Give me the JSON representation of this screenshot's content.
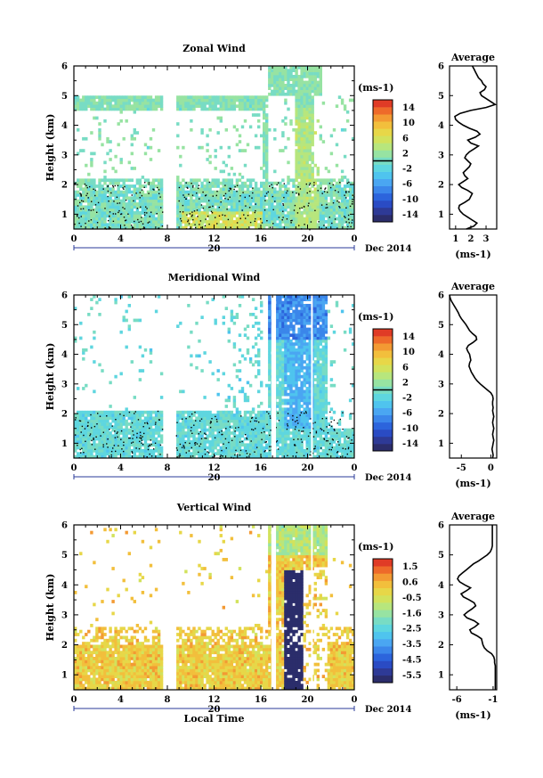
{
  "chart_data": [
    {
      "type": "heatmap",
      "title": "Zonal Wind",
      "ylabel": "Height (km)",
      "x_ticks": [
        "0",
        "4",
        "8",
        "12",
        "16",
        "20",
        "0"
      ],
      "date_day": "20",
      "date_label": "Dec 2014",
      "ylim": [
        0.5,
        6
      ],
      "y_ticks": [
        "1",
        "2",
        "3",
        "4",
        "5",
        "6"
      ],
      "colorbar": {
        "unit": "(ms-1)",
        "range": [
          -16,
          16
        ],
        "ticks": [
          "14",
          "10",
          "6",
          "2",
          "-2",
          "-6",
          "-10",
          "-14"
        ],
        "ref_line": 0
      },
      "profile": {
        "title": "Average",
        "xlabel": "(ms-1)",
        "x_ticks": [
          "1",
          "2",
          "3"
        ],
        "xlim": [
          0.6,
          3.7
        ],
        "heights": [
          0.5,
          0.6,
          0.7,
          0.8,
          0.9,
          1.0,
          1.1,
          1.2,
          1.3,
          1.4,
          1.5,
          1.6,
          1.7,
          1.8,
          1.9,
          2.0,
          2.1,
          2.2,
          2.3,
          2.4,
          2.5,
          2.6,
          2.7,
          2.8,
          2.9,
          3.0,
          3.1,
          3.2,
          3.3,
          3.4,
          3.5,
          3.6,
          3.7,
          3.8,
          3.9,
          4.0,
          4.1,
          4.2,
          4.3,
          4.4,
          4.5,
          4.6,
          4.7,
          4.8,
          4.9,
          5.0,
          5.1,
          5.2,
          5.3,
          5.4,
          5.5,
          5.6,
          5.7,
          5.8,
          5.9,
          6.0
        ],
        "values": [
          1.7,
          2.2,
          2.4,
          2.1,
          1.8,
          1.5,
          1.3,
          1.2,
          1.25,
          1.6,
          1.9,
          2.0,
          2.1,
          1.8,
          1.4,
          1.2,
          1.5,
          1.8,
          1.6,
          1.5,
          1.7,
          1.9,
          2.0,
          1.8,
          1.6,
          1.7,
          1.9,
          2.2,
          2.5,
          2.0,
          1.8,
          2.3,
          2.6,
          2.4,
          1.9,
          1.5,
          1.2,
          1.0,
          0.95,
          1.3,
          2.0,
          3.0,
          3.6,
          3.3,
          3.0,
          2.7,
          2.6,
          2.9,
          3.0,
          2.8,
          2.7,
          2.5,
          2.4,
          2.3,
          2.2,
          2.1
        ]
      }
    },
    {
      "type": "heatmap",
      "title": "Meridional Wind",
      "ylabel": "Height (km)",
      "x_ticks": [
        "0",
        "4",
        "8",
        "12",
        "16",
        "20",
        "0"
      ],
      "date_day": "20",
      "date_label": "Dec 2014",
      "ylim": [
        0.5,
        6
      ],
      "y_ticks": [
        "1",
        "2",
        "3",
        "4",
        "5",
        "6"
      ],
      "colorbar": {
        "unit": "(ms-1)",
        "range": [
          -16,
          16
        ],
        "ticks": [
          "14",
          "10",
          "6",
          "2",
          "-2",
          "-6",
          "-10",
          "-14"
        ],
        "ref_line": 0
      },
      "profile": {
        "title": "Average",
        "xlabel": "(ms-1)",
        "x_ticks": [
          "-5",
          "0"
        ],
        "xlim": [
          -7,
          1
        ],
        "heights": [
          0.5,
          0.6,
          0.7,
          0.8,
          0.9,
          1.0,
          1.1,
          1.2,
          1.3,
          1.4,
          1.5,
          1.6,
          1.7,
          1.8,
          1.9,
          2.0,
          2.1,
          2.2,
          2.3,
          2.4,
          2.5,
          2.6,
          2.7,
          2.8,
          2.9,
          3.0,
          3.1,
          3.2,
          3.3,
          3.4,
          3.5,
          3.6,
          3.7,
          3.8,
          3.9,
          4.0,
          4.1,
          4.2,
          4.3,
          4.4,
          4.5,
          4.6,
          4.7,
          4.8,
          4.9,
          5.0,
          5.1,
          5.2,
          5.3,
          5.4,
          5.5,
          5.6,
          5.7,
          5.8,
          5.9,
          6.0
        ],
        "values": [
          0.3,
          0.4,
          0.3,
          0.2,
          0.3,
          0.4,
          0.5,
          0.4,
          0.3,
          0.4,
          0.5,
          0.4,
          0.3,
          0.4,
          0.5,
          0.4,
          0.3,
          0.4,
          0.3,
          0.3,
          0.4,
          0.3,
          0.0,
          -0.6,
          -1.2,
          -1.8,
          -2.3,
          -2.7,
          -3.0,
          -3.3,
          -3.5,
          -3.7,
          -3.6,
          -3.4,
          -3.5,
          -3.6,
          -3.9,
          -4.1,
          -3.8,
          -3.0,
          -2.4,
          -2.5,
          -3.1,
          -3.6,
          -3.9,
          -4.2,
          -4.6,
          -5.0,
          -5.3,
          -5.5,
          -5.8,
          -6.1,
          -6.4,
          -6.7,
          -6.9,
          -7.0
        ]
      }
    },
    {
      "type": "heatmap",
      "title": "Vertical Wind",
      "ylabel": "Height (km)",
      "xlabel": "Local Time",
      "x_ticks": [
        "0",
        "4",
        "8",
        "12",
        "16",
        "20",
        "0"
      ],
      "date_day": "20",
      "date_label": "Dec 2014",
      "ylim": [
        0.5,
        6
      ],
      "y_ticks": [
        "1",
        "2",
        "3",
        "4",
        "5",
        "6"
      ],
      "colorbar": {
        "unit": "(ms-1)",
        "range": [
          -6.0,
          2.0
        ],
        "ticks": [
          "1.5",
          "0.6",
          "-0.5",
          "-1.6",
          "-2.5",
          "-3.5",
          "-4.5",
          "-5.5"
        ]
      },
      "profile": {
        "title": "Average",
        "xlabel": "(ms-1)",
        "x_ticks": [
          "-6",
          "-1"
        ],
        "xlim": [
          -7,
          -0.5
        ],
        "heights": [
          0.5,
          0.6,
          0.7,
          0.8,
          0.9,
          1.0,
          1.1,
          1.2,
          1.3,
          1.4,
          1.5,
          1.6,
          1.7,
          1.8,
          1.9,
          2.0,
          2.1,
          2.2,
          2.3,
          2.4,
          2.5,
          2.6,
          2.7,
          2.8,
          2.9,
          3.0,
          3.1,
          3.2,
          3.3,
          3.4,
          3.5,
          3.6,
          3.7,
          3.8,
          3.9,
          4.0,
          4.1,
          4.2,
          4.3,
          4.4,
          4.5,
          4.6,
          4.7,
          4.8,
          4.9,
          5.0,
          5.1,
          5.2,
          5.3,
          5.4,
          5.5,
          5.6,
          5.7,
          5.8,
          5.9,
          6.0
        ],
        "values": [
          -0.7,
          -0.7,
          -0.7,
          -0.7,
          -0.7,
          -0.7,
          -0.7,
          -0.7,
          -0.7,
          -0.8,
          -0.8,
          -0.9,
          -1.2,
          -1.8,
          -2.2,
          -2.4,
          -2.5,
          -2.6,
          -3.2,
          -4.0,
          -4.2,
          -3.5,
          -3.0,
          -3.6,
          -4.6,
          -5.0,
          -4.5,
          -3.9,
          -3.4,
          -3.6,
          -4.3,
          -5.1,
          -5.4,
          -4.7,
          -4.1,
          -4.9,
          -5.6,
          -5.9,
          -5.7,
          -5.2,
          -4.7,
          -4.2,
          -3.7,
          -3.0,
          -2.4,
          -1.8,
          -1.4,
          -1.2,
          -1.1,
          -1.1,
          -1.1,
          -1.1,
          -1.1,
          -1.1,
          -1.1,
          -1.1
        ]
      }
    }
  ]
}
